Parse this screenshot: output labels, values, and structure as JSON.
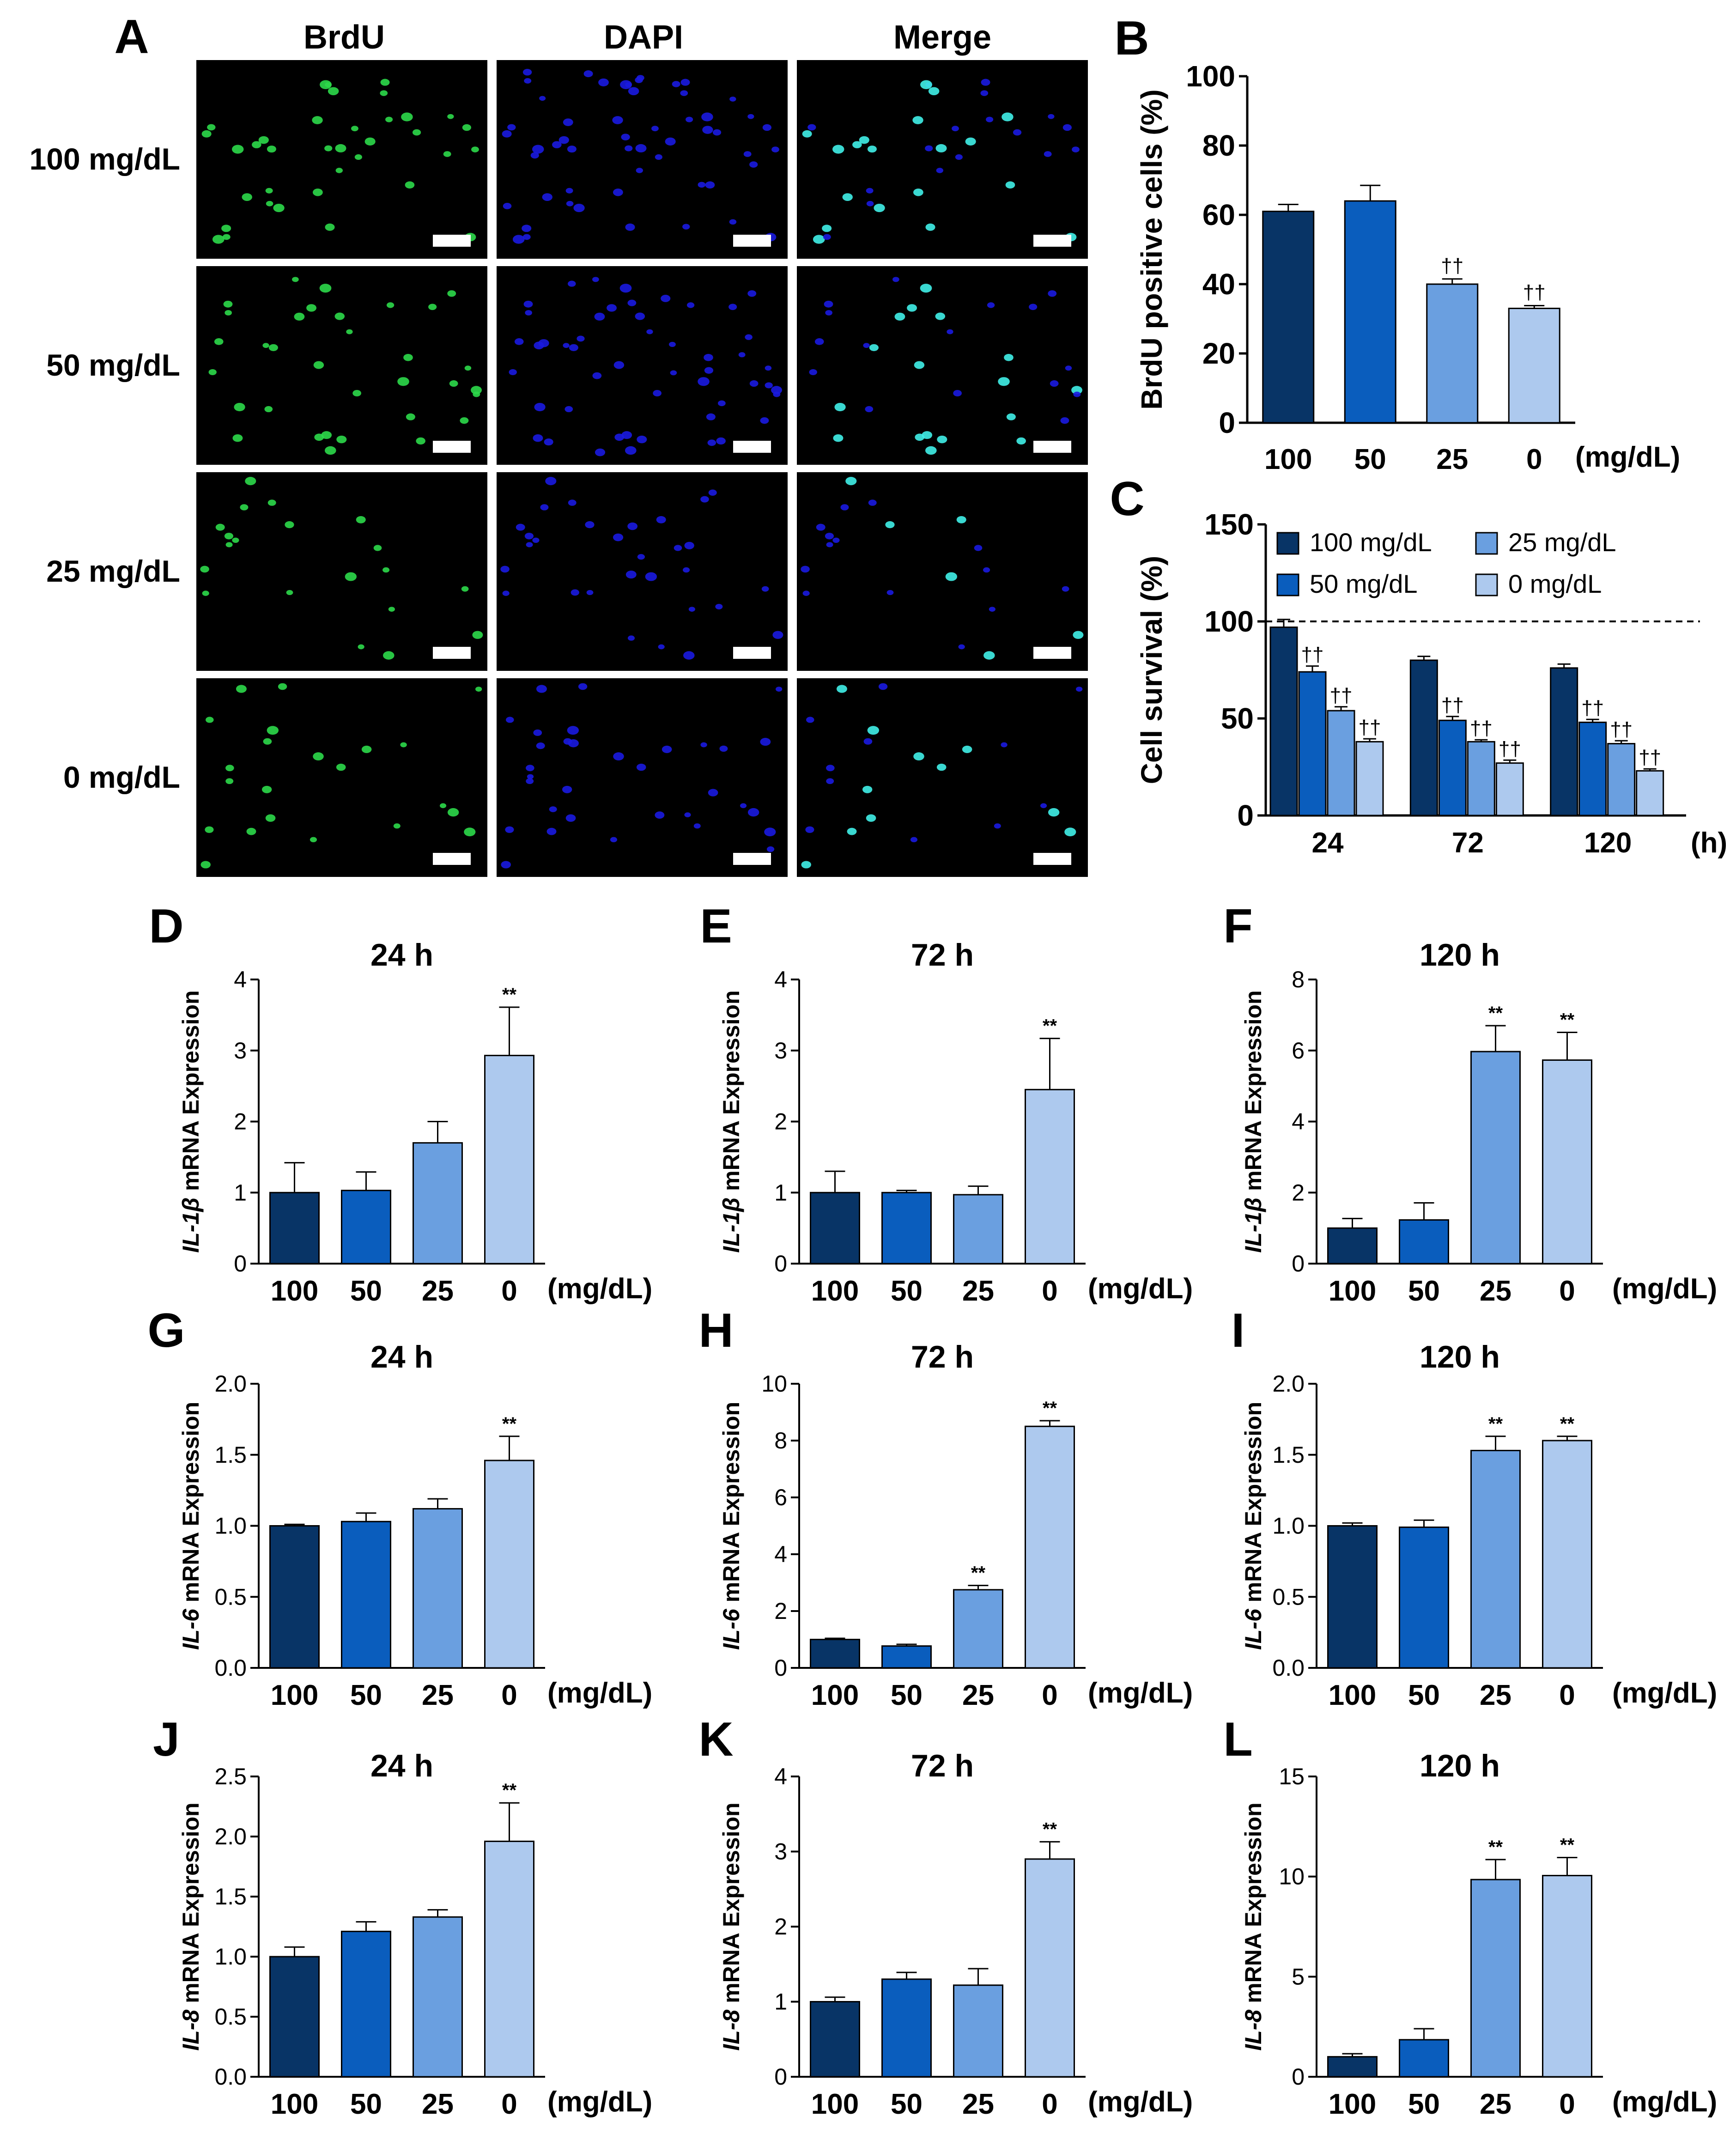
{
  "colors": {
    "c100": "#083466",
    "c50": "#0a5dbd",
    "c25": "#6a9fe0",
    "c0": "#adc9ee",
    "dapi": "#1a1ae0",
    "brdu": "#2cd94a",
    "merge": "#40f0e8"
  },
  "panel_A": {
    "letter": "A",
    "columns": [
      "BrdU",
      "DAPI",
      "Merge"
    ],
    "rows": [
      "100 mg/dL",
      "50 mg/dL",
      "25 mg/dL",
      "0 mg/dL"
    ]
  },
  "chart_data": [
    {
      "panel": "B",
      "type": "bar",
      "ylabel": "BrdU positive cells (%)",
      "unit": "(mg/dL)",
      "categories": [
        "100",
        "50",
        "25",
        "0"
      ],
      "values": [
        61,
        64,
        40,
        33
      ],
      "errors": [
        2,
        4.5,
        1.5,
        0.8
      ],
      "ylim": [
        0,
        100
      ],
      "yticks": [
        "0",
        "20",
        "40",
        "60",
        "80",
        "100"
      ],
      "marks": [
        "",
        "",
        "††",
        "††"
      ]
    },
    {
      "panel": "C",
      "type": "bar",
      "ylabel": "Cell survival (%)",
      "unit": "(h)",
      "categories": [
        "24",
        "72",
        "120"
      ],
      "ylim": [
        0,
        150
      ],
      "yticks": [
        "0",
        "50",
        "100",
        "150"
      ],
      "reference_line": 100,
      "series": [
        {
          "name": "100 mg/dL",
          "values": [
            97,
            80,
            76
          ],
          "errors": [
            4,
            2,
            2
          ],
          "marks": [
            "",
            "",
            ""
          ]
        },
        {
          "name": "50 mg/dL",
          "values": [
            74,
            49,
            48
          ],
          "errors": [
            3,
            2,
            1.5
          ],
          "marks": [
            "††",
            "††",
            "††"
          ]
        },
        {
          "name": "25 mg/dL",
          "values": [
            54,
            38,
            37
          ],
          "errors": [
            2,
            1,
            1.5
          ],
          "marks": [
            "††",
            "††",
            "††"
          ]
        },
        {
          "name": "0 mg/dL",
          "values": [
            38,
            27,
            23
          ],
          "errors": [
            1.5,
            1.5,
            1
          ],
          "marks": [
            "††",
            "††",
            "††"
          ]
        }
      ]
    },
    {
      "panel": "D",
      "type": "bar",
      "title": "24 h",
      "gene": "IL-1β",
      "ylabel_rest": " mRNA Expression",
      "unit": "(mg/dL)",
      "categories": [
        "100",
        "50",
        "25",
        "0"
      ],
      "values": [
        1.0,
        1.03,
        1.7,
        2.93
      ],
      "errors": [
        0.42,
        0.26,
        0.3,
        0.68
      ],
      "ylim": [
        0,
        4
      ],
      "yticks": [
        "0",
        "1",
        "2",
        "3",
        "4"
      ],
      "marks": [
        "",
        "",
        "",
        "**"
      ]
    },
    {
      "panel": "E",
      "type": "bar",
      "title": "72 h",
      "gene": "IL-1β",
      "ylabel_rest": " mRNA Expression",
      "unit": "(mg/dL)",
      "categories": [
        "100",
        "50",
        "25",
        "0"
      ],
      "values": [
        1.0,
        1.0,
        0.97,
        2.45
      ],
      "errors": [
        0.3,
        0.03,
        0.12,
        0.72
      ],
      "ylim": [
        0,
        4
      ],
      "yticks": [
        "0",
        "1",
        "2",
        "3",
        "4"
      ],
      "marks": [
        "",
        "",
        "",
        "**"
      ]
    },
    {
      "panel": "F",
      "type": "bar",
      "title": "120 h",
      "gene": "IL-1β",
      "ylabel_rest": " mRNA Expression",
      "unit": "(mg/dL)",
      "categories": [
        "100",
        "50",
        "25",
        "0"
      ],
      "values": [
        1.0,
        1.23,
        5.97,
        5.73
      ],
      "errors": [
        0.27,
        0.48,
        0.73,
        0.78
      ],
      "ylim": [
        0,
        8
      ],
      "yticks": [
        "0",
        "2",
        "4",
        "6",
        "8"
      ],
      "marks": [
        "",
        "",
        "**",
        "**"
      ]
    },
    {
      "panel": "G",
      "type": "bar",
      "title": "24 h",
      "gene": "IL-6",
      "ylabel_rest": " mRNA Expression",
      "unit": "(mg/dL)",
      "categories": [
        "100",
        "50",
        "25",
        "0"
      ],
      "values": [
        1.0,
        1.03,
        1.12,
        1.46
      ],
      "errors": [
        0.01,
        0.06,
        0.07,
        0.17
      ],
      "ylim": [
        0,
        2
      ],
      "yticks": [
        "0.0",
        "0.5",
        "1.0",
        "1.5",
        "2.0"
      ],
      "marks": [
        "",
        "",
        "",
        "**"
      ]
    },
    {
      "panel": "H",
      "type": "bar",
      "title": "72 h",
      "gene": "IL-6",
      "ylabel_rest": " mRNA Expression",
      "unit": "(mg/dL)",
      "categories": [
        "100",
        "50",
        "25",
        "0"
      ],
      "values": [
        1.0,
        0.77,
        2.75,
        8.5
      ],
      "errors": [
        0.04,
        0.06,
        0.15,
        0.2
      ],
      "ylim": [
        0,
        10
      ],
      "yticks": [
        "0",
        "2",
        "4",
        "6",
        "8",
        "10"
      ],
      "marks": [
        "",
        "",
        "**",
        "**"
      ]
    },
    {
      "panel": "I",
      "type": "bar",
      "title": "120 h",
      "gene": "IL-6",
      "ylabel_rest": " mRNA Expression",
      "unit": "(mg/dL)",
      "categories": [
        "100",
        "50",
        "25",
        "0"
      ],
      "values": [
        1.0,
        0.99,
        1.53,
        1.6
      ],
      "errors": [
        0.02,
        0.05,
        0.1,
        0.03
      ],
      "ylim": [
        0,
        2
      ],
      "yticks": [
        "0.0",
        "0.5",
        "1.0",
        "1.5",
        "2.0"
      ],
      "marks": [
        "",
        "",
        "**",
        "**"
      ]
    },
    {
      "panel": "J",
      "type": "bar",
      "title": "24 h",
      "gene": "IL-8",
      "ylabel_rest": " mRNA Expression",
      "unit": "(mg/dL)",
      "categories": [
        "100",
        "50",
        "25",
        "0"
      ],
      "values": [
        1.0,
        1.21,
        1.33,
        1.96
      ],
      "errors": [
        0.08,
        0.08,
        0.06,
        0.32
      ],
      "ylim": [
        0,
        2.5
      ],
      "yticks": [
        "0.0",
        "0.5",
        "1.0",
        "1.5",
        "2.0",
        "2.5"
      ],
      "marks": [
        "",
        "",
        "",
        "**"
      ]
    },
    {
      "panel": "K",
      "type": "bar",
      "title": "72 h",
      "gene": "IL-8",
      "ylabel_rest": " mRNA Expression",
      "unit": "(mg/dL)",
      "categories": [
        "100",
        "50",
        "25",
        "0"
      ],
      "values": [
        1.0,
        1.3,
        1.22,
        2.9
      ],
      "errors": [
        0.06,
        0.09,
        0.22,
        0.23
      ],
      "ylim": [
        0,
        4
      ],
      "yticks": [
        "0",
        "1",
        "2",
        "3",
        "4"
      ],
      "marks": [
        "",
        "",
        "",
        "**"
      ]
    },
    {
      "panel": "L",
      "type": "bar",
      "title": "120 h",
      "gene": "IL-8",
      "ylabel_rest": " mRNA Expression",
      "unit": "(mg/dL)",
      "categories": [
        "100",
        "50",
        "25",
        "0"
      ],
      "values": [
        1.0,
        1.85,
        9.85,
        10.05
      ],
      "errors": [
        0.15,
        0.55,
        1.0,
        0.9
      ],
      "ylim": [
        0,
        15
      ],
      "yticks": [
        "0",
        "5",
        "10",
        "15"
      ],
      "marks": [
        "",
        "",
        "**",
        "**"
      ]
    }
  ]
}
